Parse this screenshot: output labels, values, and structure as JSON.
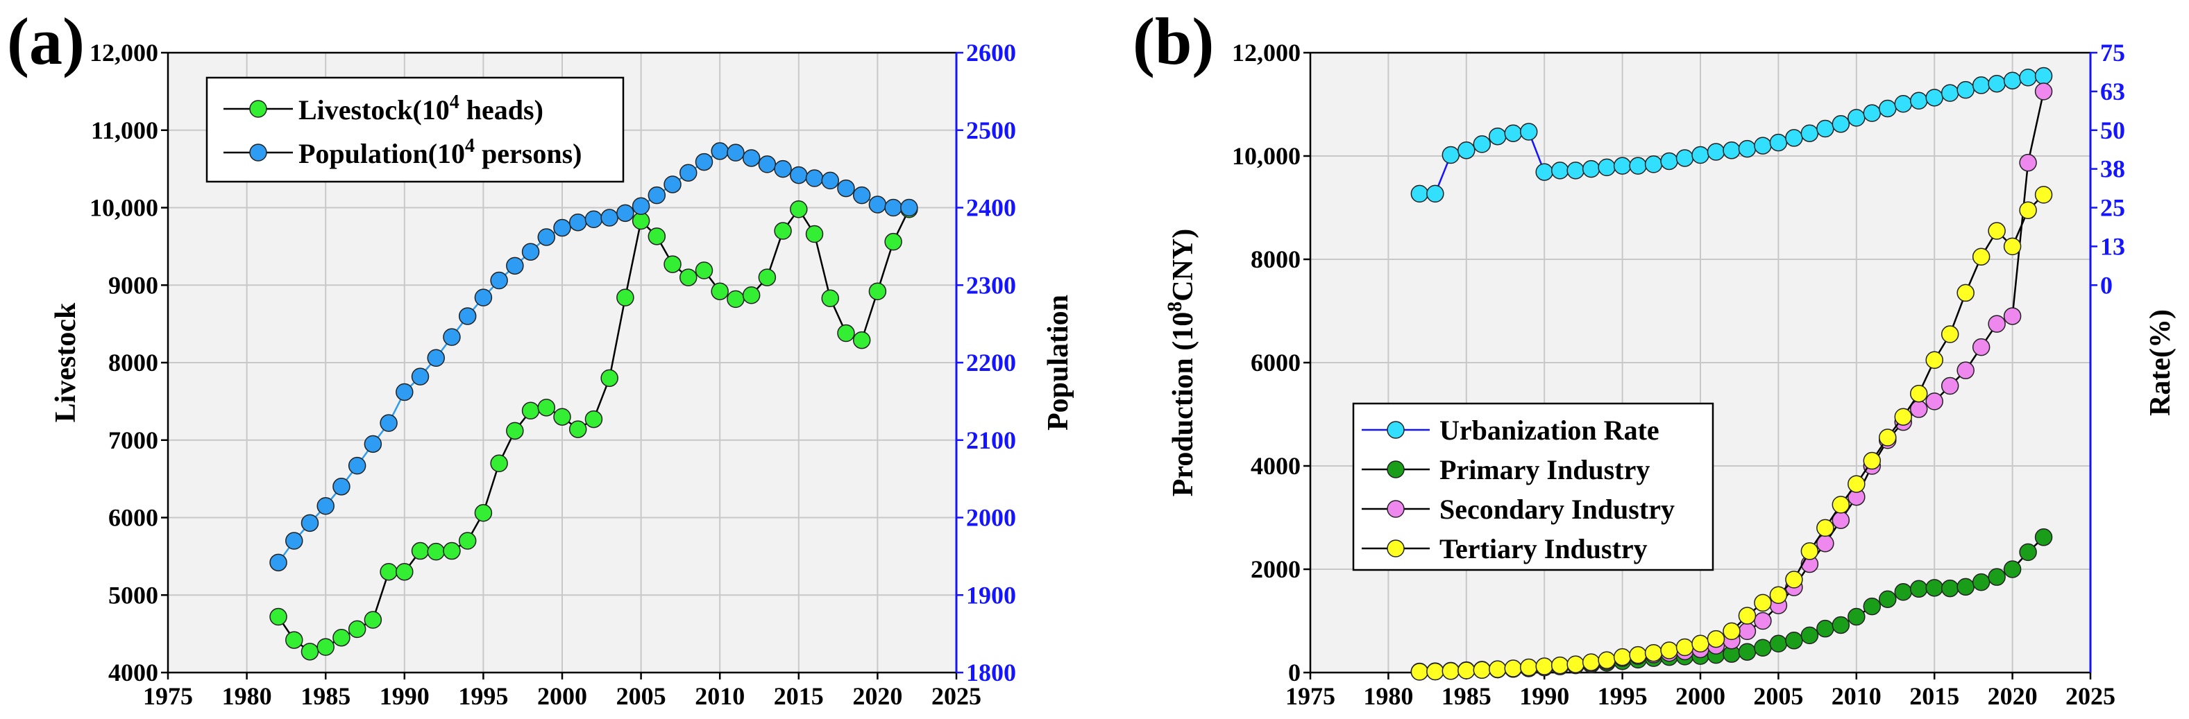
{
  "colors": {
    "blue_axis": "#1414ff",
    "plot_bg": "#f2f2f2",
    "grid": "#c8c8c8",
    "livestock": "#33ee33",
    "population": "#2e9cf2",
    "urbanization": "#33dfff",
    "primary": "#1a9e1a",
    "secondary": "#ee88ee",
    "tertiary": "#ffff22"
  },
  "chart_data": [
    {
      "type": "line",
      "panel_label": "(a)",
      "x_ticks": [
        "1975",
        "1980",
        "1985",
        "1990",
        "1995",
        "2000",
        "2005",
        "2010",
        "2015",
        "2020",
        "2025"
      ],
      "x_range": [
        1975,
        2025
      ],
      "y_left": {
        "label": "Livestock",
        "range": [
          4000,
          12000
        ],
        "ticks": [
          "4000",
          "5000",
          "6000",
          "7000",
          "8000",
          "9000",
          "10,000",
          "11,000",
          "12,000"
        ]
      },
      "y_right": {
        "label": "Population",
        "range": [
          1800,
          2600
        ],
        "ticks": [
          "1800",
          "1900",
          "2000",
          "2100",
          "2200",
          "2300",
          "2400",
          "2500",
          "2600"
        ]
      },
      "legend": {
        "position": "top-left",
        "entries": [
          {
            "main": "Livestock(10",
            "sup": "4",
            "tail": " heads)"
          },
          {
            "main": "Population(10",
            "sup": "4",
            "tail": " persons)"
          }
        ]
      },
      "series": [
        {
          "name": "Livestock",
          "axis": "left",
          "x": [
            1982,
            1983,
            1984,
            1985,
            1986,
            1987,
            1988,
            1989,
            1990,
            1991,
            1992,
            1993,
            1994,
            1995,
            1996,
            1997,
            1998,
            1999,
            2000,
            2001,
            2002,
            2003,
            2004,
            2005,
            2006,
            2007,
            2008,
            2009,
            2010,
            2011,
            2012,
            2013,
            2014,
            2015,
            2016,
            2017,
            2018,
            2019,
            2020,
            2021,
            2022
          ],
          "values": [
            4720,
            4420,
            4270,
            4330,
            4450,
            4560,
            4680,
            5300,
            5300,
            5570,
            5560,
            5570,
            5700,
            6060,
            6700,
            7120,
            7380,
            7420,
            7300,
            7140,
            7270,
            7800,
            8840,
            9830,
            9630,
            9270,
            9100,
            9190,
            8920,
            8820,
            8870,
            9100,
            9700,
            9980,
            9660,
            8830,
            8380,
            8290,
            8920,
            9560,
            9980
          ]
        },
        {
          "name": "Population",
          "axis": "right",
          "x": [
            1982,
            1983,
            1984,
            1985,
            1986,
            1987,
            1988,
            1989,
            1990,
            1991,
            1992,
            1993,
            1994,
            1995,
            1996,
            1997,
            1998,
            1999,
            2000,
            2001,
            2002,
            2003,
            2004,
            2005,
            2006,
            2007,
            2008,
            2009,
            2010,
            2011,
            2012,
            2013,
            2014,
            2015,
            2016,
            2017,
            2018,
            2019,
            2020,
            2021,
            2022
          ],
          "values": [
            1942,
            1970,
            1993,
            2015,
            2040,
            2067,
            2095,
            2122,
            2162,
            2182,
            2206,
            2233,
            2260,
            2284,
            2306,
            2325,
            2343,
            2362,
            2374,
            2381,
            2385,
            2387,
            2393,
            2402,
            2416,
            2430,
            2445,
            2459,
            2473,
            2471,
            2464,
            2456,
            2450,
            2442,
            2438,
            2435,
            2425,
            2416,
            2404,
            2400,
            2400
          ]
        }
      ]
    },
    {
      "type": "line",
      "panel_label": "(b)",
      "x_ticks": [
        "1975",
        "1980",
        "1985",
        "1990",
        "1995",
        "2000",
        "2005",
        "2010",
        "2015",
        "2020",
        "2025"
      ],
      "x_range": [
        1975,
        2025
      ],
      "y_left": {
        "label_main": "Production (10",
        "label_sup": "8",
        "label_tail": "CNY)",
        "range": [
          0,
          12000
        ],
        "ticks": [
          "0",
          "2000",
          "4000",
          "6000",
          "8000",
          "10,000",
          "12,000"
        ]
      },
      "y_right": {
        "label": "Rate(%)",
        "range": [
          -125,
          75
        ],
        "ticks": [
          "0",
          "13",
          "25",
          "38",
          "50",
          "63",
          "75"
        ],
        "tick_values": [
          0,
          12.5,
          25,
          37.5,
          50,
          62.5,
          75
        ]
      },
      "legend": {
        "position": "bottom-left",
        "entries": [
          "Urbanization Rate",
          "Primary Industry",
          "Secondary Industry",
          "Tertiary Industry"
        ]
      },
      "series": [
        {
          "name": "Urbanization Rate",
          "axis": "right",
          "x": [
            1982,
            1983,
            1984,
            1985,
            1986,
            1987,
            1988,
            1989,
            1990,
            1991,
            1992,
            1993,
            1994,
            1995,
            1996,
            1997,
            1998,
            1999,
            2000,
            2001,
            2002,
            2003,
            2004,
            2005,
            2006,
            2007,
            2008,
            2009,
            2010,
            2011,
            2012,
            2013,
            2014,
            2015,
            2016,
            2017,
            2018,
            2019,
            2020,
            2021,
            2022
          ],
          "values": [
            29.5,
            29.5,
            42,
            43.5,
            45.5,
            48,
            49,
            49.5,
            36.5,
            37,
            37,
            37.5,
            38,
            38.5,
            38.5,
            39,
            40,
            41,
            42,
            43,
            43.5,
            44,
            45,
            46,
            47.5,
            49,
            50.5,
            52,
            54,
            55.5,
            57,
            58.5,
            59.5,
            60.5,
            62,
            63,
            64.5,
            65,
            66,
            67,
            67.5
          ]
        },
        {
          "name": "Primary Industry",
          "axis": "left",
          "x": [
            1982,
            1983,
            1984,
            1985,
            1986,
            1987,
            1988,
            1989,
            1990,
            1991,
            1992,
            1993,
            1994,
            1995,
            1996,
            1997,
            1998,
            1999,
            2000,
            2001,
            2002,
            2003,
            2004,
            2005,
            2006,
            2007,
            2008,
            2009,
            2010,
            2011,
            2012,
            2013,
            2014,
            2015,
            2016,
            2017,
            2018,
            2019,
            2020,
            2021,
            2022
          ],
          "values": [
            20,
            25,
            35,
            45,
            55,
            60,
            70,
            80,
            100,
            120,
            140,
            160,
            190,
            220,
            250,
            280,
            300,
            310,
            320,
            340,
            360,
            400,
            480,
            560,
            620,
            720,
            850,
            920,
            1080,
            1280,
            1420,
            1560,
            1620,
            1640,
            1630,
            1660,
            1750,
            1850,
            2000,
            2330,
            2620
          ]
        },
        {
          "name": "Secondary Industry",
          "axis": "left",
          "x": [
            1982,
            1983,
            1984,
            1985,
            1986,
            1987,
            1988,
            1989,
            1990,
            1991,
            1992,
            1993,
            1994,
            1995,
            1996,
            1997,
            1998,
            1999,
            2000,
            2001,
            2002,
            2003,
            2004,
            2005,
            2006,
            2007,
            2008,
            2009,
            2010,
            2011,
            2012,
            2013,
            2014,
            2015,
            2016,
            2017,
            2018,
            2019,
            2020,
            2021,
            2022
          ],
          "values": [
            15,
            20,
            30,
            40,
            50,
            60,
            70,
            90,
            100,
            120,
            150,
            180,
            220,
            280,
            320,
            350,
            380,
            410,
            450,
            520,
            620,
            800,
            1000,
            1300,
            1650,
            2100,
            2500,
            2950,
            3400,
            4000,
            4500,
            4850,
            5100,
            5250,
            5550,
            5850,
            6300,
            6750,
            6900,
            9870,
            11250
          ]
        },
        {
          "name": "Tertiary Industry",
          "axis": "left",
          "x": [
            1982,
            1983,
            1984,
            1985,
            1986,
            1987,
            1988,
            1989,
            1990,
            1991,
            1992,
            1993,
            1994,
            1995,
            1996,
            1997,
            1998,
            1999,
            2000,
            2001,
            2002,
            2003,
            2004,
            2005,
            2006,
            2007,
            2008,
            2009,
            2010,
            2011,
            2012,
            2013,
            2014,
            2015,
            2016,
            2017,
            2018,
            2019,
            2020,
            2021,
            2022
          ],
          "values": [
            15,
            20,
            30,
            40,
            50,
            65,
            80,
            100,
            120,
            140,
            160,
            200,
            240,
            300,
            340,
            380,
            430,
            490,
            560,
            650,
            800,
            1100,
            1350,
            1500,
            1800,
            2350,
            2800,
            3250,
            3650,
            4100,
            4550,
            4950,
            5400,
            6050,
            6550,
            7350,
            8050,
            8550,
            8250,
            8950,
            9250
          ]
        }
      ]
    }
  ]
}
